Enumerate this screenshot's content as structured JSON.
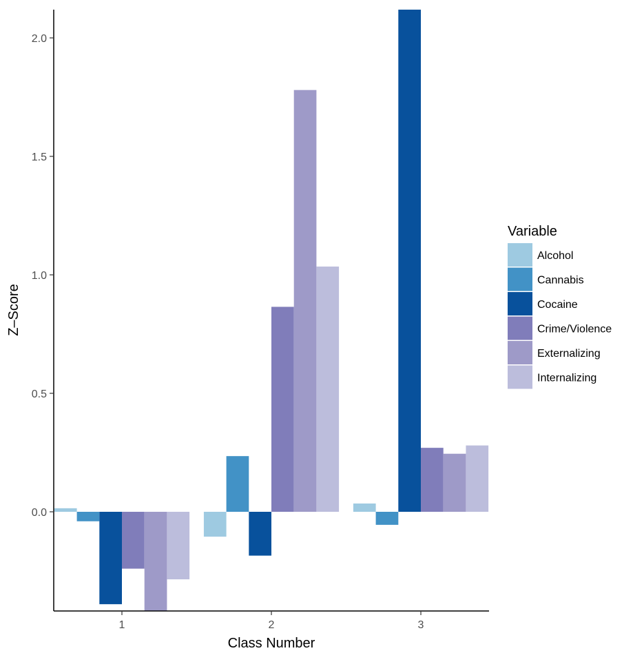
{
  "chart_data": {
    "type": "bar",
    "title": "",
    "xlabel": "Class Number",
    "ylabel": "Z–Score",
    "categories": [
      "1",
      "2",
      "3"
    ],
    "ylim": [
      -0.42,
      2.12
    ],
    "y_ticks": [
      "0.0",
      "0.5",
      "1.0",
      "1.5",
      "2.0"
    ],
    "y_tick_values": [
      0.0,
      0.5,
      1.0,
      1.5,
      2.0
    ],
    "grid": false,
    "legend_title": "Variable",
    "legend_position": "right",
    "series": [
      {
        "name": "Alcohol",
        "color": "#9ecae1",
        "values": [
          0.015,
          -0.105,
          0.035
        ]
      },
      {
        "name": "Cannabis",
        "color": "#4292c6",
        "values": [
          -0.04,
          0.235,
          -0.055
        ]
      },
      {
        "name": "Cocaine",
        "color": "#08519c",
        "values": [
          -0.39,
          -0.185,
          2.12
        ]
      },
      {
        "name": "Crime/Violence",
        "color": "#807dba",
        "values": [
          -0.24,
          0.865,
          0.27
        ]
      },
      {
        "name": "Externalizing",
        "color": "#9e9ac8",
        "values": [
          -0.42,
          1.78,
          0.245
        ]
      },
      {
        "name": "Internalizing",
        "color": "#bcbddc",
        "values": [
          -0.285,
          1.035,
          0.28
        ]
      }
    ]
  }
}
